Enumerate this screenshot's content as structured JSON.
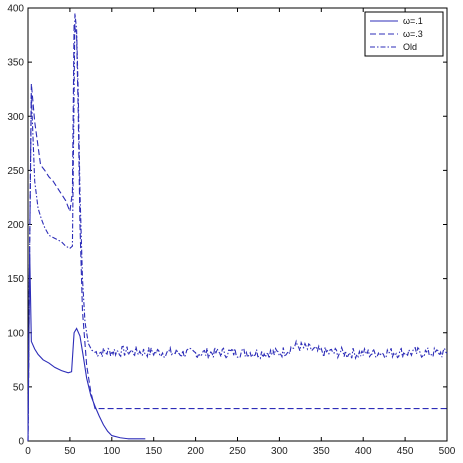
{
  "chart_data": {
    "type": "line",
    "title": "",
    "xlabel": "",
    "ylabel": "",
    "xlim": [
      0,
      500
    ],
    "ylim": [
      0,
      400
    ],
    "xticks": [
      0,
      50,
      100,
      150,
      200,
      250,
      300,
      350,
      400,
      450,
      500
    ],
    "yticks": [
      0,
      50,
      100,
      150,
      200,
      250,
      300,
      350,
      400
    ],
    "grid": false,
    "legend_position": "top-right",
    "colors": {
      "line": "#2d2db8",
      "axis": "#000000"
    },
    "series": [
      {
        "name": "ω=.1",
        "style": "solid",
        "x": [
          0,
          2,
          4,
          8,
          12,
          18,
          25,
          32,
          40,
          48,
          52,
          55,
          58,
          62,
          66,
          70,
          75,
          80,
          85,
          90,
          95,
          100,
          110,
          120,
          140
        ],
        "y": [
          0,
          175,
          92,
          85,
          80,
          75,
          72,
          68,
          65,
          63,
          64,
          100,
          104,
          97,
          78,
          58,
          42,
          32,
          23,
          15,
          9,
          5,
          3,
          2,
          2
        ]
      },
      {
        "name": "ω=.3",
        "style": "dashed",
        "x": [
          0,
          2,
          4,
          8,
          15,
          20,
          25,
          30,
          35,
          40,
          45,
          50,
          53,
          55,
          58,
          60,
          62,
          65,
          70,
          75,
          80,
          500
        ],
        "y": [
          0,
          180,
          330,
          295,
          255,
          250,
          244,
          240,
          234,
          228,
          222,
          212,
          230,
          385,
          375,
          300,
          200,
          120,
          70,
          45,
          30,
          30
        ]
      },
      {
        "name": "Old",
        "style": "dashdot",
        "x": [
          0,
          2,
          4,
          8,
          12,
          16,
          20,
          25,
          30,
          35,
          40,
          45,
          50,
          53,
          56,
          58,
          60,
          62,
          65,
          68,
          72,
          76,
          80,
          90,
          100,
          150,
          200,
          250,
          300,
          320,
          350,
          400,
          450,
          500
        ],
        "y": [
          0,
          180,
          320,
          240,
          215,
          205,
          197,
          190,
          188,
          186,
          184,
          180,
          178,
          180,
          395,
          380,
          320,
          230,
          150,
          110,
          90,
          84,
          82,
          82,
          83,
          82,
          81,
          82,
          81,
          88,
          82,
          81,
          82,
          81
        ]
      }
    ]
  }
}
